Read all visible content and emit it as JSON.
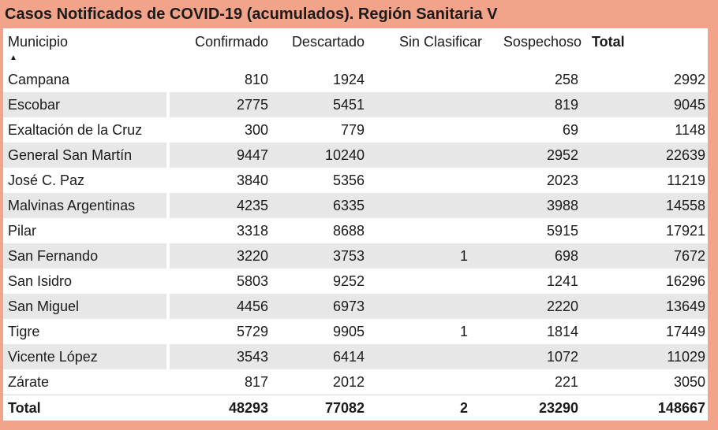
{
  "title": "Casos Notificados de COVID-19 (acumulados). Región Sanitaria V",
  "colors": {
    "frame": "#F1A489",
    "stripe": "#E7E7E7",
    "row_white": "#FFFFFF",
    "text": "#1B1B1B"
  },
  "table": {
    "sort_icon": "▲",
    "sort": {
      "column": "Municipio",
      "direction": "ascending"
    },
    "columns": [
      {
        "key": "municipio",
        "label": "Municipio"
      },
      {
        "key": "confirmado",
        "label": "Confirmado"
      },
      {
        "key": "descartado",
        "label": "Descartado"
      },
      {
        "key": "sin_clasificar",
        "label": "Sin Clasificar"
      },
      {
        "key": "sospechoso",
        "label": "Sospechoso"
      },
      {
        "key": "total",
        "label": "Total"
      }
    ],
    "rows": [
      {
        "municipio": "Campana",
        "confirmado": "810",
        "descartado": "1924",
        "sin_clasificar": "",
        "sospechoso": "258",
        "total": "2992"
      },
      {
        "municipio": "Escobar",
        "confirmado": "2775",
        "descartado": "5451",
        "sin_clasificar": "",
        "sospechoso": "819",
        "total": "9045"
      },
      {
        "municipio": "Exaltación de la Cruz",
        "confirmado": "300",
        "descartado": "779",
        "sin_clasificar": "",
        "sospechoso": "69",
        "total": "1148"
      },
      {
        "municipio": "General San Martín",
        "confirmado": "9447",
        "descartado": "10240",
        "sin_clasificar": "",
        "sospechoso": "2952",
        "total": "22639"
      },
      {
        "municipio": "José C. Paz",
        "confirmado": "3840",
        "descartado": "5356",
        "sin_clasificar": "",
        "sospechoso": "2023",
        "total": "11219"
      },
      {
        "municipio": "Malvinas Argentinas",
        "confirmado": "4235",
        "descartado": "6335",
        "sin_clasificar": "",
        "sospechoso": "3988",
        "total": "14558"
      },
      {
        "municipio": "Pilar",
        "confirmado": "3318",
        "descartado": "8688",
        "sin_clasificar": "",
        "sospechoso": "5915",
        "total": "17921"
      },
      {
        "municipio": "San Fernando",
        "confirmado": "3220",
        "descartado": "3753",
        "sin_clasificar": "1",
        "sospechoso": "698",
        "total": "7672"
      },
      {
        "municipio": "San Isidro",
        "confirmado": "5803",
        "descartado": "9252",
        "sin_clasificar": "",
        "sospechoso": "1241",
        "total": "16296"
      },
      {
        "municipio": "San Miguel",
        "confirmado": "4456",
        "descartado": "6973",
        "sin_clasificar": "",
        "sospechoso": "2220",
        "total": "13649"
      },
      {
        "municipio": "Tigre",
        "confirmado": "5729",
        "descartado": "9905",
        "sin_clasificar": "1",
        "sospechoso": "1814",
        "total": "17449"
      },
      {
        "municipio": "Vicente López",
        "confirmado": "3543",
        "descartado": "6414",
        "sin_clasificar": "",
        "sospechoso": "1072",
        "total": "11029"
      },
      {
        "municipio": "Zárate",
        "confirmado": "817",
        "descartado": "2012",
        "sin_clasificar": "",
        "sospechoso": "221",
        "total": "3050"
      }
    ],
    "total_row": {
      "municipio": "Total",
      "confirmado": "48293",
      "descartado": "77082",
      "sin_clasificar": "2",
      "sospechoso": "23290",
      "total": "148667"
    }
  },
  "chart_data": {
    "type": "table",
    "title": "Casos Notificados de COVID-19 (acumulados). Región Sanitaria V",
    "columns": [
      "Municipio",
      "Confirmado",
      "Descartado",
      "Sin Clasificar",
      "Sospechoso",
      "Total"
    ],
    "rows": [
      [
        "Campana",
        810,
        1924,
        null,
        258,
        2992
      ],
      [
        "Escobar",
        2775,
        5451,
        null,
        819,
        9045
      ],
      [
        "Exaltación de la Cruz",
        300,
        779,
        null,
        69,
        1148
      ],
      [
        "General San Martín",
        9447,
        10240,
        null,
        2952,
        22639
      ],
      [
        "José C. Paz",
        3840,
        5356,
        null,
        2023,
        11219
      ],
      [
        "Malvinas Argentinas",
        4235,
        6335,
        null,
        3988,
        14558
      ],
      [
        "Pilar",
        3318,
        8688,
        null,
        5915,
        17921
      ],
      [
        "San Fernando",
        3220,
        3753,
        1,
        698,
        7672
      ],
      [
        "San Isidro",
        5803,
        9252,
        null,
        1241,
        16296
      ],
      [
        "San Miguel",
        4456,
        6973,
        null,
        2220,
        13649
      ],
      [
        "Tigre",
        5729,
        9905,
        1,
        1814,
        17449
      ],
      [
        "Vicente López",
        3543,
        6414,
        null,
        1072,
        11029
      ],
      [
        "Zárate",
        817,
        2012,
        null,
        221,
        3050
      ]
    ],
    "total_row": [
      "Total",
      48293,
      77082,
      2,
      23290,
      148667
    ],
    "sort": {
      "column": "Municipio",
      "direction": "ascending"
    },
    "layout": {
      "striped_rows": true,
      "frame_color": "#F1A489",
      "stripe_color": "#E7E7E7"
    }
  }
}
